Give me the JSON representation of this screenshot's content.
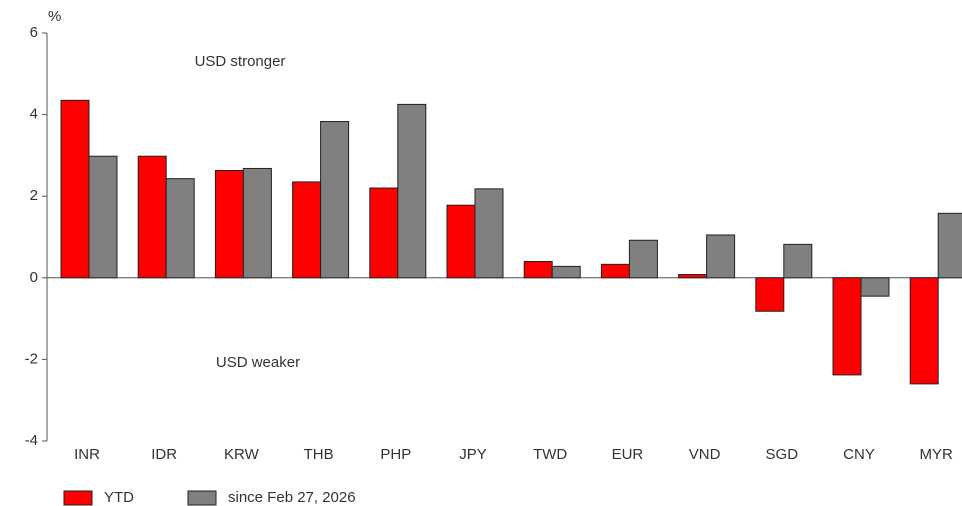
{
  "chart_data": {
    "type": "bar",
    "y_unit": "%",
    "annotations": [
      "USD stronger",
      "USD weaker"
    ],
    "categories": [
      "INR",
      "IDR",
      "KRW",
      "THB",
      "PHP",
      "JPY",
      "TWD",
      "EUR",
      "VND",
      "SGD",
      "CNY",
      "MYR"
    ],
    "series": [
      {
        "name": "YTD",
        "color": "#ff0000",
        "values": [
          4.35,
          2.98,
          2.63,
          2.35,
          2.2,
          1.78,
          0.4,
          0.33,
          0.08,
          -0.82,
          -2.38,
          -2.6
        ]
      },
      {
        "name": "since Feb 27, 2026",
        "color": "#808080",
        "values": [
          2.98,
          2.43,
          2.68,
          3.83,
          4.25,
          2.18,
          0.28,
          0.92,
          1.05,
          0.82,
          -0.45,
          1.58
        ]
      }
    ],
    "ylim": [
      -4,
      6
    ],
    "yticks": [
      -4,
      -2,
      0,
      2,
      4,
      6
    ],
    "legend": "bottom"
  }
}
